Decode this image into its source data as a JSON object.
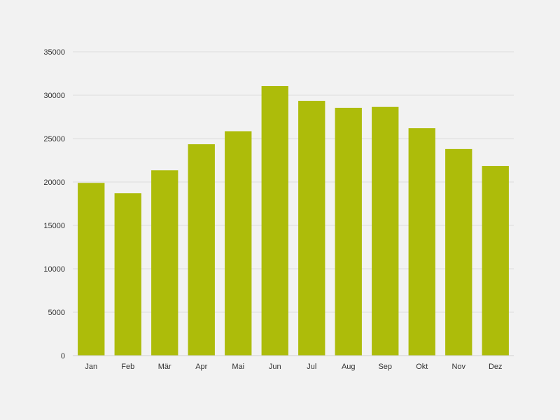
{
  "chart_data": {
    "type": "bar",
    "categories": [
      "Jan",
      "Feb",
      "Mär",
      "Apr",
      "Mai",
      "Jun",
      "Jul",
      "Aug",
      "Sep",
      "Okt",
      "Nov",
      "Dez"
    ],
    "values": [
      19900,
      18700,
      21350,
      24350,
      25850,
      31050,
      29350,
      28550,
      28650,
      26200,
      23800,
      21850
    ],
    "title": "",
    "xlabel": "",
    "ylabel": "",
    "ylim": [
      0,
      35000
    ],
    "yticks": [
      0,
      5000,
      10000,
      15000,
      20000,
      25000,
      30000,
      35000
    ],
    "grid": true,
    "legend": "none",
    "bar_color": "#adbc0a",
    "background_color": "#f2f2f2",
    "grid_color": "#dcdcdc"
  }
}
